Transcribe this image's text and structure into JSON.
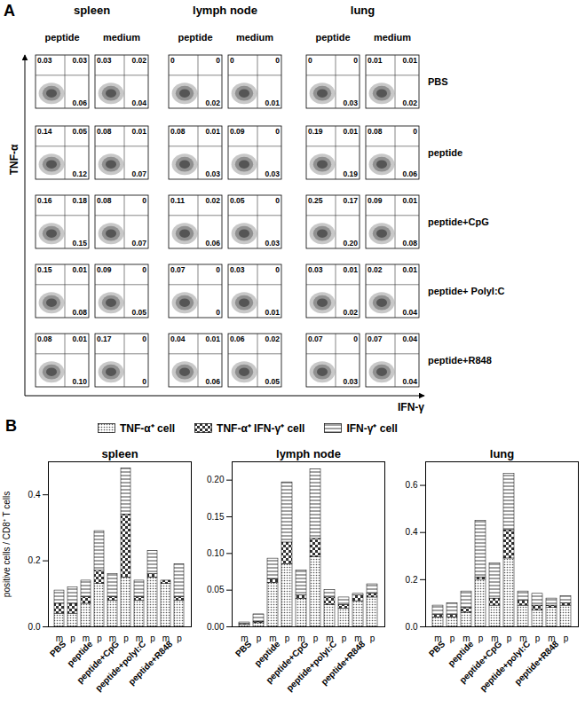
{
  "panel_a": {
    "label": "A",
    "y_label": "TNF-α",
    "x_label": "IFN-γ",
    "tissues": [
      "spleen",
      "lymph node",
      "lung"
    ],
    "conditions": [
      "peptide",
      "medium"
    ],
    "rows": [
      "PBS",
      "peptide",
      "peptide+CpG",
      "peptide+ PolyI:C",
      "peptide+R848"
    ],
    "cells": [
      [
        [
          "0.03",
          "0.03",
          "0.06"
        ],
        [
          "0.03",
          "0.02",
          "0.04"
        ],
        [
          "0",
          "0",
          "0.02"
        ],
        [
          "0",
          "0",
          "0.01"
        ],
        [
          "0",
          "0",
          "0.03"
        ],
        [
          "0.01",
          "0.01",
          "0.02"
        ]
      ],
      [
        [
          "0.14",
          "0.05",
          "0.12"
        ],
        [
          "0.08",
          "0.01",
          "0.07"
        ],
        [
          "0.08",
          "0.01",
          "0.03"
        ],
        [
          "0.09",
          "0",
          "0.03"
        ],
        [
          "0.19",
          "0.01",
          "0.19"
        ],
        [
          "0.08",
          "0",
          "0.06"
        ]
      ],
      [
        [
          "0.16",
          "0.18",
          "0.15"
        ],
        [
          "0.08",
          "0",
          "0.07"
        ],
        [
          "0.11",
          "0.02",
          "0.06"
        ],
        [
          "0.05",
          "0",
          "0.03"
        ],
        [
          "0.25",
          "0.17",
          "0.20"
        ],
        [
          "0.09",
          "0.01",
          "0.08"
        ]
      ],
      [
        [
          "0.15",
          "0.01",
          "0.08"
        ],
        [
          "0.09",
          "0",
          "0.05"
        ],
        [
          "0.07",
          "0",
          "0"
        ],
        [
          "0.03",
          "0",
          "0.01"
        ],
        [
          "0.03",
          "0.01",
          "0.02"
        ],
        [
          "0.02",
          "0.01",
          "0.04"
        ]
      ],
      [
        [
          "0.08",
          "0.01",
          "0.10"
        ],
        [
          "0.17",
          "0",
          "0"
        ],
        [
          "0.04",
          "0.01",
          "0.06"
        ],
        [
          "0.06",
          "0.02",
          "0.05"
        ],
        [
          "0.07",
          "0",
          "0.03"
        ],
        [
          "0.07",
          "0.04",
          "0.04"
        ]
      ]
    ]
  },
  "panel_b_label": "B",
  "chart_data": [
    {
      "type": "bar",
      "stacked": true,
      "title": "spleen",
      "y_label": "positive cells / CD8⁺ T cells",
      "groups": [
        "PBS",
        "peptide",
        "peptide+CpG",
        "peptide+polyI:C",
        "peptide+R848"
      ],
      "categories": [
        "m",
        "p",
        "m",
        "p",
        "m",
        "p",
        "m",
        "p",
        "m",
        "p"
      ],
      "ylim": [
        0,
        0.5
      ],
      "yticks": [
        {
          "value": 0,
          "label": "0.0"
        },
        0.2,
        0.4
      ],
      "series": [
        {
          "name": "TNF-α⁺ cell",
          "color": "#555555",
          "marker": "dots",
          "values": [
            0.04,
            0.04,
            0.07,
            0.13,
            0.08,
            0.15,
            0.08,
            0.15,
            0.13,
            0.08
          ]
        },
        {
          "name": "TNF-α⁺ IFN-γ⁺ cell",
          "color": "#333333",
          "marker": "checks",
          "values": [
            0.03,
            0.03,
            0.02,
            0.04,
            0.01,
            0.19,
            0.01,
            0.01,
            0.01,
            0.01
          ]
        },
        {
          "name": "IFN-γ⁺ cell",
          "color": "#444444",
          "marker": "stripes",
          "values": [
            0.04,
            0.05,
            0.05,
            0.12,
            0.07,
            0.14,
            0.05,
            0.07,
            0.0,
            0.1
          ]
        }
      ]
    },
    {
      "type": "bar",
      "stacked": true,
      "title": "lymph node",
      "groups": [
        "PBS",
        "peptide",
        "peptide+CpG",
        "peptide+polyI:C",
        "peptide+R848"
      ],
      "categories": [
        "m",
        "p",
        "m",
        "p",
        "m",
        "p",
        "m",
        "p",
        "m",
        "p"
      ],
      "ylim": [
        0,
        0.225
      ],
      "yticks": [
        {
          "value": 0,
          "label": "0.00"
        },
        0.05,
        {
          "value": 0.1,
          "label": "0.10"
        },
        0.15,
        {
          "value": 0.2,
          "label": "0.20"
        }
      ],
      "series": [
        {
          "name": "TNF-α⁺ cell",
          "color": "#555555",
          "marker": "dots",
          "values": [
            0.003,
            0.005,
            0.06,
            0.085,
            0.038,
            0.095,
            0.03,
            0.025,
            0.035,
            0.04
          ]
        },
        {
          "name": "TNF-α⁺ IFN-γ⁺ cell",
          "color": "#333333",
          "marker": "checks",
          "values": [
            0.001,
            0.002,
            0.005,
            0.03,
            0.005,
            0.025,
            0.01,
            0.005,
            0.008,
            0.005
          ]
        },
        {
          "name": "IFN-γ⁺ cell",
          "color": "#444444",
          "marker": "stripes",
          "values": [
            0.002,
            0.01,
            0.028,
            0.082,
            0.034,
            0.095,
            0.01,
            0.01,
            0.002,
            0.013
          ]
        }
      ]
    },
    {
      "type": "bar",
      "stacked": true,
      "title": "lung",
      "groups": [
        "PBS",
        "peptide",
        "peptide+CpG",
        "peptide+polyI:C",
        "peptide+R848"
      ],
      "categories": [
        "m",
        "p",
        "m",
        "p",
        "m",
        "p",
        "m",
        "p",
        "m",
        "p"
      ],
      "ylim": [
        0,
        0.7
      ],
      "yticks": [
        {
          "value": 0,
          "label": "0.0"
        },
        0.2,
        0.4,
        0.6
      ],
      "series": [
        {
          "name": "TNF-α⁺ cell",
          "color": "#555555",
          "marker": "dots",
          "values": [
            0.04,
            0.04,
            0.06,
            0.2,
            0.09,
            0.29,
            0.09,
            0.07,
            0.08,
            0.09
          ]
        },
        {
          "name": "TNF-α⁺ IFN-γ⁺ cell",
          "color": "#333333",
          "marker": "checks",
          "values": [
            0.01,
            0.01,
            0.02,
            0.01,
            0.03,
            0.12,
            0.02,
            0.02,
            0.01,
            0.01
          ]
        },
        {
          "name": "IFN-γ⁺ cell",
          "color": "#444444",
          "marker": "stripes",
          "values": [
            0.04,
            0.05,
            0.07,
            0.24,
            0.15,
            0.24,
            0.04,
            0.05,
            0.03,
            0.03
          ]
        }
      ]
    }
  ]
}
